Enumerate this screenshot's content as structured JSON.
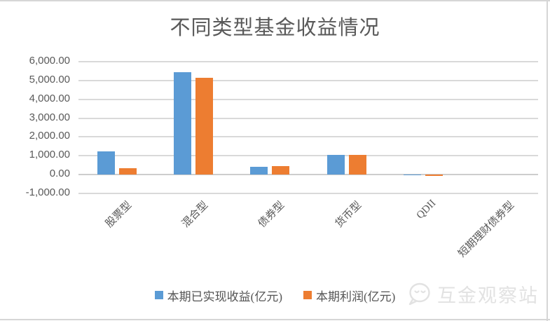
{
  "chart_data": {
    "type": "bar",
    "title": "不同类型基金收益情况",
    "categories": [
      "股票型",
      "混合型",
      "债券型",
      "货币型",
      "QDII",
      "短期理财债券型"
    ],
    "series": [
      {
        "name": "本期已实现收益(亿元)",
        "color": "#5B9BD5",
        "values": [
          1230,
          5450,
          400,
          1030,
          -50,
          0
        ]
      },
      {
        "name": "本期利润(亿元)",
        "color": "#ED7D31",
        "values": [
          330,
          5150,
          460,
          1030,
          -85,
          0
        ]
      }
    ],
    "ylim": [
      -1000,
      6000
    ],
    "ytick_step": 1000,
    "ytick_labels": [
      "6,000.00",
      "5,000.00",
      "4,000.00",
      "3,000.00",
      "2,000.00",
      "1,000.00",
      "0.00",
      "-1,000.00"
    ],
    "grid": true,
    "gridline_color": "#D9D9D9",
    "text_color": "#595959",
    "legend_position": "bottom",
    "xlabel": "",
    "ylabel": ""
  },
  "watermark": {
    "text": "互金观察站",
    "icon": "wechat-icon",
    "color": "#E2E2E2"
  }
}
